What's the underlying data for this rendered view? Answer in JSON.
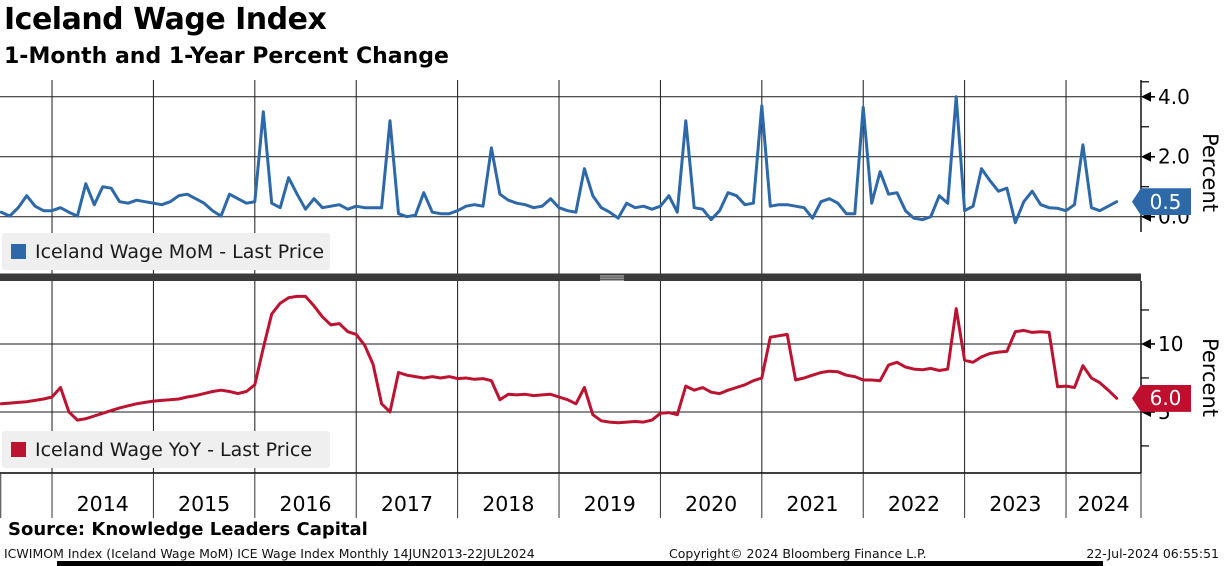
{
  "header": {
    "title": "Iceland Wage Index",
    "subtitle": "1-Month and 1-Year Percent Change"
  },
  "colors": {
    "mom_line": "#2d68a8",
    "yoy_line": "#bc1331",
    "mom_badge": "#2d68a8",
    "yoy_badge": "#c00f2e",
    "grid": "#1a1a1a",
    "divider": "#3a3a3a",
    "divider_grip": "#a8a8a8",
    "legend_bg": "#efefef"
  },
  "top_panel": {
    "legend": "Iceland Wage MoM - Last Price",
    "axis_label": "Percent",
    "last_price_label": "0.5",
    "ticks": [
      {
        "v": 4.5
      },
      {
        "v": 4.0,
        "label": "4.0"
      },
      {
        "v": 3.0
      },
      {
        "v": 2.0,
        "label": "2.0"
      },
      {
        "v": 1.0
      },
      {
        "v": 0.0,
        "label": "0.0"
      }
    ]
  },
  "bottom_panel": {
    "legend": "Iceland Wage YoY - Last Price",
    "axis_label": "Percent",
    "last_price_label": "6.0",
    "ticks": [
      {
        "v": 12.5
      },
      {
        "v": 10,
        "label": "10"
      },
      {
        "v": 7.5
      },
      {
        "v": 5,
        "label": "5"
      },
      {
        "v": 2.5
      }
    ]
  },
  "xaxis": {
    "years": [
      "2014",
      "2015",
      "2016",
      "2017",
      "2018",
      "2019",
      "2020",
      "2021",
      "2022",
      "2023",
      "2024"
    ]
  },
  "footer": {
    "source": "Source: Knowledge Leaders Capital",
    "left": "ICWIMOM Index (Iceland Wage MoM) ICE Wage Index  Monthly 14JUN2013-22JUL2024",
    "center": "Copyright© 2024 Bloomberg Finance L.P.",
    "right": "22-Jul-2024 06:55:51"
  },
  "chart_data": [
    {
      "type": "line",
      "name": "Iceland Wage MoM - Last Price",
      "ticker": "ICWIMOM Index",
      "color": "#2d68a8",
      "frequency": "monthly",
      "start": "2013-06",
      "end": "2024-07",
      "unit": "percent",
      "last_price": 0.5,
      "ylabel": "Percent",
      "ylim": [
        -0.51,
        4.56
      ],
      "xlim_years": [
        2013.487,
        2024.744
      ],
      "grid": true,
      "values": [
        0.2,
        0.15,
        0.02,
        0.3,
        0.7,
        0.35,
        0.2,
        0.2,
        0.3,
        0.15,
        0.02,
        1.1,
        0.4,
        1.0,
        0.95,
        0.5,
        0.45,
        0.55,
        0.5,
        0.45,
        0.4,
        0.5,
        0.7,
        0.75,
        0.6,
        0.45,
        0.2,
        0.02,
        0.75,
        0.6,
        0.45,
        0.5,
        3.5,
        0.45,
        0.3,
        1.3,
        0.75,
        0.25,
        0.6,
        0.3,
        0.35,
        0.4,
        0.25,
        0.35,
        0.3,
        0.3,
        0.3,
        3.2,
        0.1,
        0.0,
        0.05,
        0.8,
        0.15,
        0.1,
        0.1,
        0.2,
        0.35,
        0.4,
        0.35,
        2.3,
        0.75,
        0.55,
        0.45,
        0.4,
        0.3,
        0.35,
        0.6,
        0.3,
        0.2,
        0.15,
        1.6,
        0.7,
        0.3,
        0.15,
        -0.05,
        0.45,
        0.3,
        0.35,
        0.25,
        0.35,
        0.7,
        0.15,
        3.2,
        0.3,
        0.25,
        -0.1,
        0.2,
        0.8,
        0.7,
        0.4,
        0.45,
        3.7,
        0.35,
        0.4,
        0.4,
        0.35,
        0.3,
        -0.05,
        0.5,
        0.6,
        0.45,
        0.1,
        0.1,
        3.65,
        0.45,
        1.5,
        0.75,
        0.8,
        0.2,
        -0.05,
        -0.1,
        0.0,
        0.7,
        0.45,
        4.0,
        0.2,
        0.35,
        1.6,
        1.2,
        0.85,
        0.95,
        -0.2,
        0.5,
        0.85,
        0.4,
        0.3,
        0.28,
        0.2,
        0.4,
        2.4,
        0.3,
        0.2,
        0.35,
        0.5
      ]
    },
    {
      "type": "line",
      "name": "Iceland Wage YoY - Last Price",
      "color": "#bc1331",
      "frequency": "monthly",
      "start": "2013-06",
      "end": "2024-07",
      "unit": "percent",
      "last_price": 6.0,
      "ylabel": "Percent",
      "ylim": [
        0.51,
        14.63
      ],
      "xlim_years": [
        2013.487,
        2024.744
      ],
      "grid": true,
      "values": [
        5.6,
        5.6,
        5.65,
        5.7,
        5.75,
        5.85,
        5.95,
        6.1,
        6.8,
        5.0,
        4.4,
        4.5,
        4.7,
        4.9,
        5.1,
        5.3,
        5.45,
        5.6,
        5.7,
        5.8,
        5.85,
        5.9,
        5.95,
        6.1,
        6.2,
        6.35,
        6.5,
        6.6,
        6.5,
        6.35,
        6.5,
        7.0,
        9.7,
        12.2,
        13.0,
        13.4,
        13.5,
        13.5,
        12.8,
        12.0,
        11.4,
        11.5,
        10.9,
        10.7,
        9.9,
        8.5,
        5.6,
        5.0,
        7.9,
        7.7,
        7.6,
        7.5,
        7.6,
        7.5,
        7.6,
        7.45,
        7.5,
        7.4,
        7.45,
        7.3,
        5.9,
        6.3,
        6.25,
        6.3,
        6.2,
        6.25,
        6.3,
        6.1,
        5.9,
        5.6,
        6.8,
        4.8,
        4.35,
        4.25,
        4.2,
        4.25,
        4.3,
        4.25,
        4.4,
        4.9,
        4.95,
        4.8,
        6.9,
        6.6,
        6.8,
        6.45,
        6.35,
        6.6,
        6.8,
        7.0,
        7.3,
        7.5,
        10.5,
        10.6,
        10.7,
        7.35,
        7.5,
        7.7,
        7.9,
        8.0,
        7.95,
        7.7,
        7.6,
        7.35,
        7.35,
        7.3,
        8.45,
        8.65,
        8.3,
        8.15,
        8.1,
        8.2,
        8.05,
        8.15,
        12.6,
        8.8,
        8.65,
        9.05,
        9.3,
        9.4,
        9.45,
        10.9,
        11.0,
        10.85,
        10.9,
        10.85,
        6.85,
        6.9,
        6.8,
        8.4,
        7.5,
        7.15,
        6.6,
        6.0
      ]
    }
  ]
}
